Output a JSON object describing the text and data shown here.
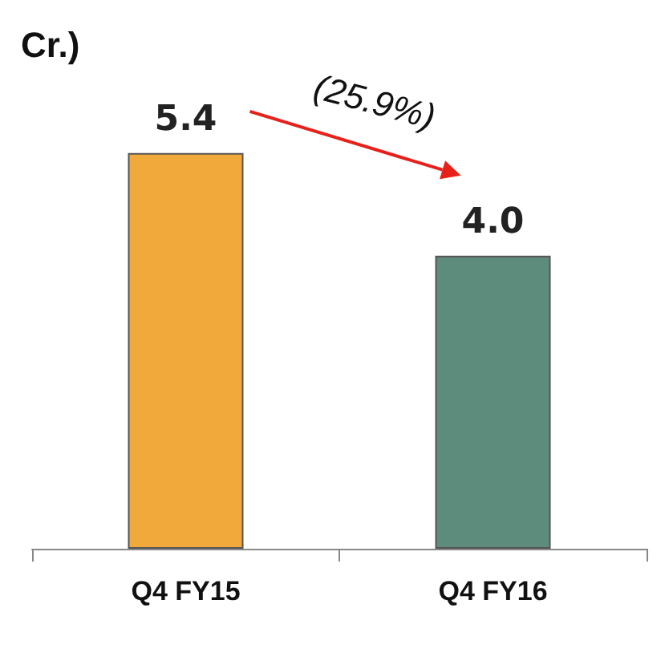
{
  "chart_data": {
    "type": "bar",
    "title": "Cr.)",
    "categories": [
      "Q4 FY15",
      "Q4 FY16"
    ],
    "values": [
      5.4,
      4.0
    ],
    "colors": [
      "#f2a93b",
      "#5e8c7c"
    ],
    "value_labels": [
      "5.4",
      "4.0"
    ],
    "annotations": [
      "(25.9%)"
    ]
  }
}
